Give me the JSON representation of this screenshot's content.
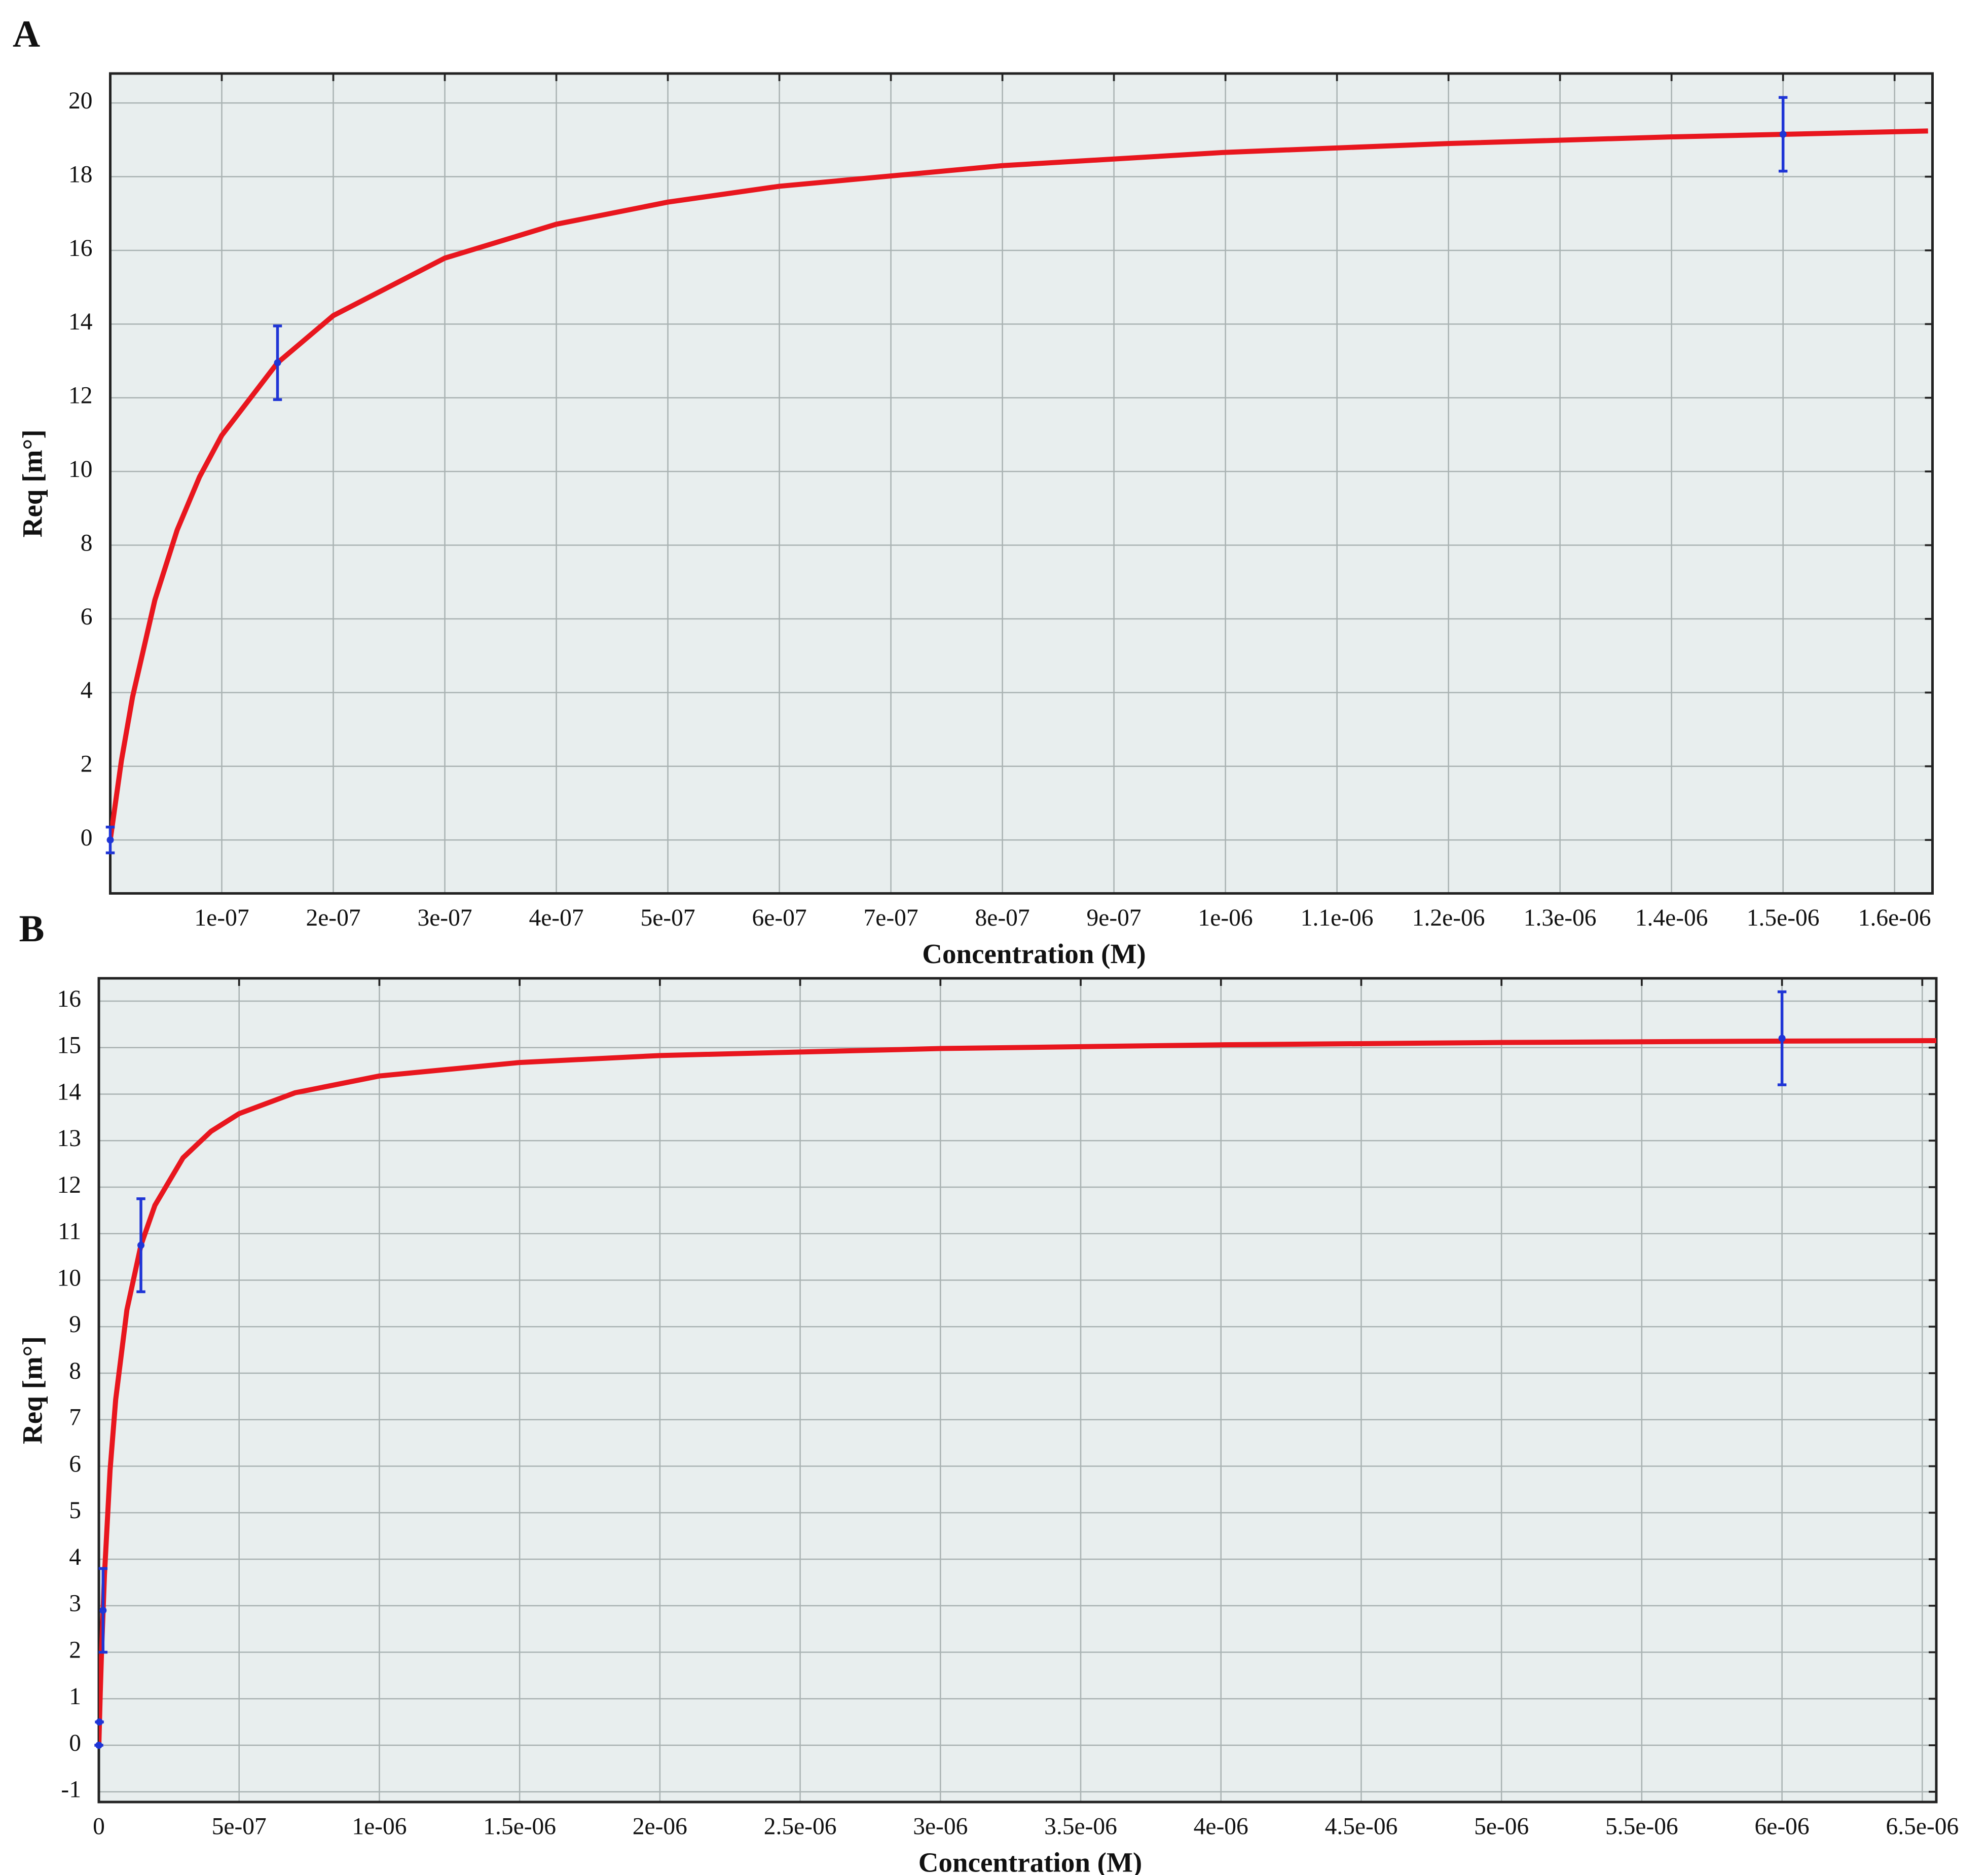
{
  "chart_data": [
    {
      "type": "scatter",
      "panel": "A",
      "x_label": "Concentration (M)",
      "y_label": "Req [m°]",
      "xlim": [
        0,
        1.634e-06
      ],
      "ylim": [
        -1.45,
        20.8
      ],
      "xticks": [
        {
          "value": 1e-07,
          "label": "1e-07"
        },
        {
          "value": 2e-07,
          "label": "2e-07"
        },
        {
          "value": 3e-07,
          "label": "3e-07"
        },
        {
          "value": 4e-07,
          "label": "4e-07"
        },
        {
          "value": 5e-07,
          "label": "5e-07"
        },
        {
          "value": 6e-07,
          "label": "6e-07"
        },
        {
          "value": 7e-07,
          "label": "7e-07"
        },
        {
          "value": 8e-07,
          "label": "8e-07"
        },
        {
          "value": 9e-07,
          "label": "9e-07"
        },
        {
          "value": 1e-06,
          "label": "1e-06"
        },
        {
          "value": 1.1e-06,
          "label": "1.1e-06"
        },
        {
          "value": 1.2e-06,
          "label": "1.2e-06"
        },
        {
          "value": 1.3e-06,
          "label": "1.3e-06"
        },
        {
          "value": 1.4e-06,
          "label": "1.4e-06"
        },
        {
          "value": 1.5e-06,
          "label": "1.5e-06"
        },
        {
          "value": 1.6e-06,
          "label": "1.6e-06"
        }
      ],
      "yticks": [
        0,
        2,
        4,
        6,
        8,
        10,
        12,
        14,
        16,
        18,
        20
      ],
      "grid": true,
      "curve": {
        "color": "#e8161e",
        "x": [
          0,
          1e-08,
          2e-08,
          4e-08,
          6e-08,
          8e-08,
          1e-07,
          1.5e-07,
          2e-07,
          3e-07,
          4e-07,
          5e-07,
          6e-07,
          8e-07,
          1e-06,
          1.2e-06,
          1.4e-06,
          1.63e-06
        ],
        "values": [
          0,
          2.15,
          3.88,
          6.51,
          8.41,
          9.85,
          10.98,
          12.95,
          14.23,
          15.79,
          16.71,
          17.31,
          17.74,
          18.3,
          18.66,
          18.9,
          19.08,
          19.24
        ]
      },
      "points": {
        "color": "#1f35d6",
        "x": [
          0,
          1.5e-07,
          1.5e-06
        ],
        "values": [
          0,
          12.95,
          19.15
        ],
        "errors": [
          0.35,
          1,
          1
        ]
      }
    },
    {
      "type": "scatter",
      "panel": "B",
      "x_label": "Concentration (M)",
      "y_label": "Req [m°]",
      "xlim": [
        0,
        6.55e-06
      ],
      "ylim": [
        -1.22,
        16.49
      ],
      "xticks": [
        0,
        {
          "value": 5e-07,
          "label": "5e-07"
        },
        {
          "value": 1e-06,
          "label": "1e-06"
        },
        {
          "value": 1.5e-06,
          "label": "1.5e-06"
        },
        {
          "value": 2e-06,
          "label": "2e-06"
        },
        {
          "value": 2.5e-06,
          "label": "2.5e-06"
        },
        {
          "value": 3e-06,
          "label": "3e-06"
        },
        {
          "value": 3.5e-06,
          "label": "3.5e-06"
        },
        {
          "value": 4e-06,
          "label": "4e-06"
        },
        {
          "value": 4.5e-06,
          "label": "4.5e-06"
        },
        {
          "value": 5e-06,
          "label": "5e-06"
        },
        {
          "value": 5.5e-06,
          "label": "5.5e-06"
        },
        {
          "value": 6e-06,
          "label": "6e-06"
        },
        {
          "value": 6.5e-06,
          "label": "6.5e-06"
        }
      ],
      "yticks": [
        -1,
        0,
        1,
        2,
        3,
        4,
        5,
        6,
        7,
        8,
        9,
        10,
        11,
        12,
        13,
        14,
        15,
        16
      ],
      "grid": true,
      "curve": {
        "color": "#e8161e",
        "x": [
          0,
          5e-09,
          1e-08,
          2e-08,
          4e-08,
          6e-08,
          1e-07,
          1.5e-07,
          2e-07,
          3e-07,
          4e-07,
          5e-07,
          7e-07,
          1e-06,
          1.5e-06,
          2e-06,
          3e-06,
          4e-06,
          5e-06,
          6e-06,
          6.55e-06
        ],
        "values": [
          0,
          1.12,
          2.08,
          3.66,
          5.91,
          7.43,
          9.36,
          10.75,
          11.61,
          12.63,
          13.2,
          13.58,
          14.03,
          14.39,
          14.68,
          14.83,
          14.98,
          15.06,
          15.11,
          15.14,
          15.15
        ]
      },
      "points": {
        "color": "#1f35d6",
        "x": [
          0,
          2e-09,
          1.5e-08,
          1.5e-07,
          6e-06
        ],
        "values": [
          0,
          0.5,
          2.9,
          10.75,
          15.2
        ],
        "errors": [
          0,
          0,
          0.9,
          1,
          1
        ]
      }
    }
  ]
}
